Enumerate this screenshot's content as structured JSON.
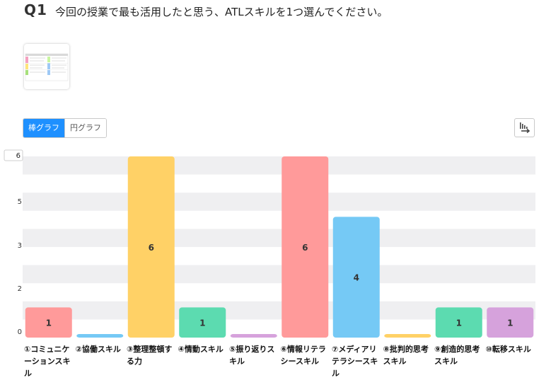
{
  "question": {
    "number": "Q1",
    "text": "今回の授業で最も活用したと思う、ATLスキルを1つ選んでください。"
  },
  "toggle": {
    "bar_label": "棒グラフ",
    "pie_label": "円グラフ",
    "active": "bar"
  },
  "icons": {
    "sort": "sort-descending-icon",
    "thumbnail": "atl-skills-table-thumbnail"
  },
  "chart_data": {
    "type": "bar",
    "categories": [
      "①コミュニケーションスキル",
      "②協働スキル",
      "③整理整頓する力",
      "④情動スキル",
      "⑤振り返りスキル",
      "⑥情報リテラシースキル",
      "⑦メディアリテラシースキル",
      "⑧批判的思考スキル",
      "⑨創造的思考スキル",
      "⑩転移スキル"
    ],
    "values": [
      1,
      0,
      6,
      1,
      0,
      6,
      4,
      0,
      1,
      1
    ],
    "data_labels": [
      "1",
      "",
      "6",
      "1",
      "",
      "6",
      "4",
      "",
      "1",
      "1"
    ],
    "colors": [
      "#ff9a9a",
      "#75c9f5",
      "#ffd166",
      "#5cdbb0",
      "#d6a2dc",
      "#ff9a9a",
      "#75c9f5",
      "#ffd166",
      "#5cdbb0",
      "#d6a2dc"
    ],
    "y_ticks": [
      "0",
      "2",
      "3",
      "5",
      "6"
    ],
    "ylim": [
      0,
      6
    ],
    "y_max_label": "6",
    "grid": true
  }
}
